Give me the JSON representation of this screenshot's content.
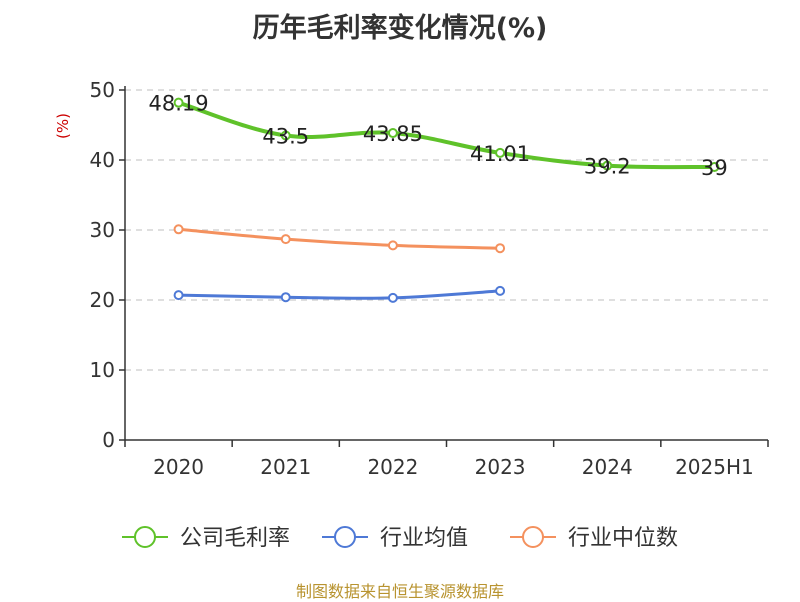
{
  "title": "历年毛利率变化情况(%)",
  "source_note": "制图数据来自恒生聚源数据库",
  "chart_data": {
    "type": "line",
    "categories": [
      "2020",
      "2021",
      "2022",
      "2023",
      "2024",
      "2025H1"
    ],
    "ylabel": "(%)",
    "ylim": [
      0,
      50
    ],
    "yticks": [
      "0",
      "10",
      "20",
      "30",
      "40",
      "50"
    ],
    "grid": true,
    "legend_position": "bottom",
    "series": [
      {
        "name": "公司毛利率",
        "color": "#5fc22a",
        "values": [
          48.19,
          43.5,
          43.85,
          41.01,
          39.2,
          39
        ],
        "labels": [
          "48.19",
          "43.5",
          "43.85",
          "41.01",
          "39.2",
          "39"
        ]
      },
      {
        "name": "行业均值",
        "color": "#4e79d6",
        "values": [
          20.7,
          20.4,
          20.3,
          21.3,
          null,
          null
        ]
      },
      {
        "name": "行业中位数",
        "color": "#f4915e",
        "values": [
          30.1,
          28.7,
          27.8,
          27.4,
          null,
          null
        ]
      }
    ]
  }
}
